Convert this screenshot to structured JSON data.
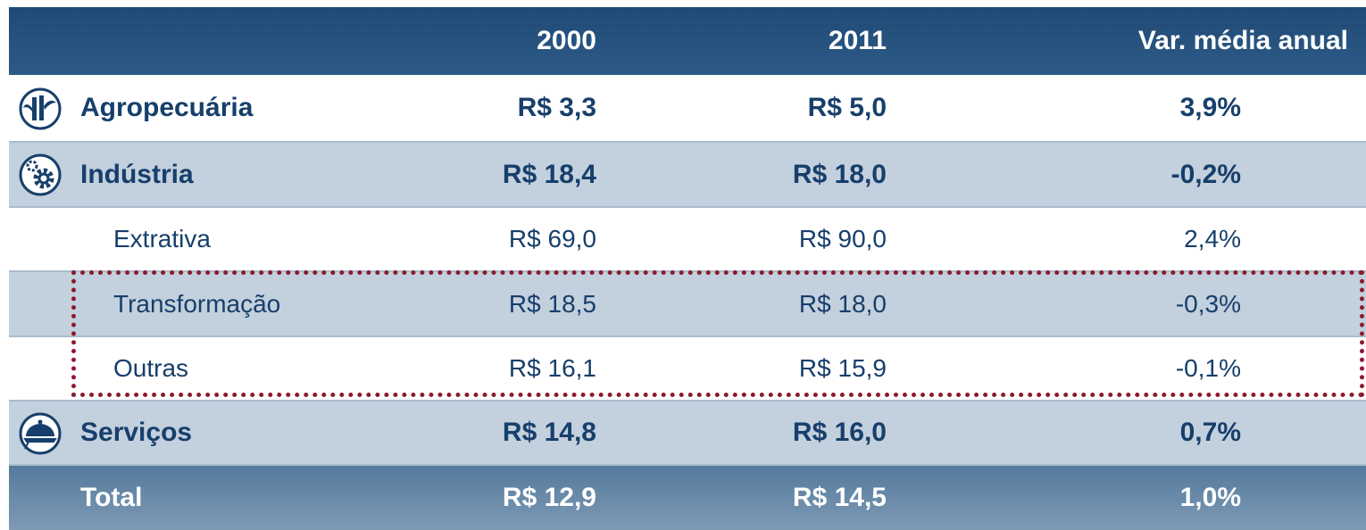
{
  "table": {
    "header": [
      "2000",
      "2011",
      "Var. média anual"
    ],
    "rows": [
      [
        "Agropecuária",
        "R$ 3,3",
        "R$ 5,0",
        "3,9%"
      ],
      [
        "Indústria",
        "R$ 18,4",
        "R$ 18,0",
        "-0,2%"
      ],
      [
        "Extrativa",
        "R$ 69,0",
        "R$ 90,0",
        "2,4%"
      ],
      [
        "Transformação",
        "R$ 18,5",
        "R$ 18,0",
        "-0,3%"
      ],
      [
        "Outras",
        "R$ 16,1",
        "R$ 15,9",
        "-0,1%"
      ],
      [
        "Serviços",
        "R$ 14,8",
        "R$ 16,0",
        "0,7%"
      ],
      [
        "Total",
        "R$ 12,9",
        "R$ 14,5",
        "1,0%"
      ]
    ]
  }
}
